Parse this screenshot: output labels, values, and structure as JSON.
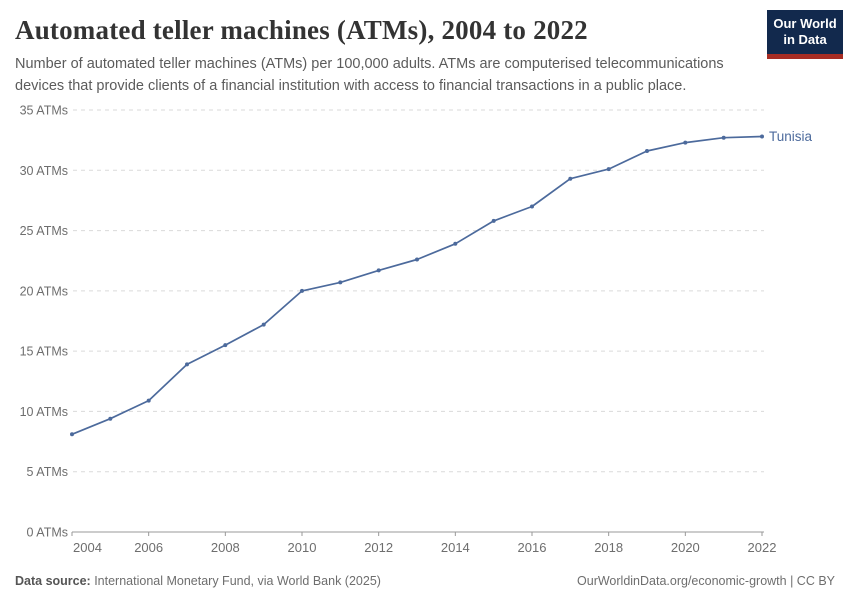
{
  "header": {
    "title": "Automated teller machines (ATMs), 2004 to 2022",
    "subtitle": "Number of automated teller machines (ATMs) per 100,000 adults. ATMs are computerised telecommunications devices that provide clients of a financial institution with access to financial transactions in a public place.",
    "logo": {
      "line1": "Our World",
      "line2": "in Data"
    }
  },
  "chart_data": {
    "type": "line",
    "title": "Automated teller machines (ATMs), 2004 to 2022",
    "xlabel": "",
    "ylabel": "",
    "x": [
      2004,
      2005,
      2006,
      2007,
      2008,
      2009,
      2010,
      2011,
      2012,
      2013,
      2014,
      2015,
      2016,
      2017,
      2018,
      2019,
      2020,
      2021,
      2022
    ],
    "series": [
      {
        "name": "Tunisia",
        "color": "#4c6a9c",
        "values": [
          8.1,
          9.4,
          10.9,
          13.9,
          15.5,
          17.2,
          20.0,
          20.7,
          21.7,
          22.6,
          23.9,
          25.8,
          27.0,
          29.3,
          30.1,
          31.6,
          32.3,
          32.7,
          32.8
        ]
      }
    ],
    "ylim": [
      0,
      35
    ],
    "y_ticks": [
      0,
      5,
      10,
      15,
      20,
      25,
      30,
      35
    ],
    "y_tick_suffix": " ATMs",
    "x_ticks": [
      2004,
      2006,
      2008,
      2010,
      2012,
      2014,
      2016,
      2018,
      2020,
      2022
    ],
    "grid": "horizontal-dashed",
    "legend": "end-label",
    "end_label": "Tunisia",
    "markers": true
  },
  "footer": {
    "source_label": "Data source:",
    "source_text": " International Monetary Fund, via World Bank (2025)",
    "link_text": "OurWorldinData.org/economic-growth",
    "divider": " | ",
    "license_text": "CC BY"
  },
  "colors": {
    "line": "#4c6a9c",
    "grid": "#dadada",
    "axis": "#999999",
    "tick_text": "#6e6e6e",
    "title_text": "#333333",
    "subtitle_text": "#5b5b5b"
  }
}
